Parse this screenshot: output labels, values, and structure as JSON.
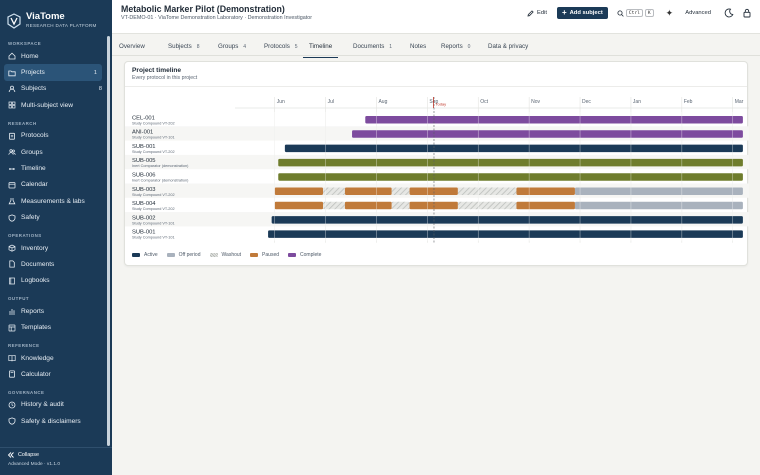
{
  "brand": {
    "name": "ViaTome",
    "tagline": "RESEARCH DATA PLATFORM"
  },
  "sidebar": {
    "sections": [
      {
        "label": "WORKSPACE",
        "items": [
          {
            "label": "Home",
            "icon": "home-icon"
          },
          {
            "label": "Projects",
            "icon": "folder-icon",
            "count": "1",
            "active": true
          },
          {
            "label": "Subjects",
            "icon": "user-icon",
            "count": "8"
          },
          {
            "label": "Multi-subject view",
            "icon": "grid-icon"
          }
        ]
      },
      {
        "label": "RESEARCH",
        "items": [
          {
            "label": "Protocols",
            "icon": "clipboard-icon"
          },
          {
            "label": "Groups",
            "icon": "users-icon"
          },
          {
            "label": "Timeline",
            "icon": "timeline-icon"
          },
          {
            "label": "Calendar",
            "icon": "calendar-icon"
          },
          {
            "label": "Measurements & labs",
            "icon": "flask-icon"
          },
          {
            "label": "Safety",
            "icon": "shield-icon"
          }
        ]
      },
      {
        "label": "OPERATIONS",
        "items": [
          {
            "label": "Inventory",
            "icon": "box-icon"
          },
          {
            "label": "Documents",
            "icon": "document-icon"
          },
          {
            "label": "Logbooks",
            "icon": "book-icon"
          }
        ]
      },
      {
        "label": "OUTPUT",
        "items": [
          {
            "label": "Reports",
            "icon": "chart-icon"
          },
          {
            "label": "Templates",
            "icon": "template-icon"
          }
        ]
      },
      {
        "label": "REFERENCE",
        "items": [
          {
            "label": "Knowledge",
            "icon": "book-open-icon"
          },
          {
            "label": "Calculator",
            "icon": "calculator-icon"
          }
        ]
      },
      {
        "label": "GOVERNANCE",
        "items": [
          {
            "label": "History & audit",
            "icon": "history-icon"
          },
          {
            "label": "Safety & disclaimers",
            "icon": "shield-icon"
          }
        ]
      }
    ],
    "collapse_label": "Collapse",
    "mode_label": "Advanced Mode · v1.1.0"
  },
  "header": {
    "title": "Metabolic Marker Pilot (Demonstration)",
    "subtitle": "VT-DEMO-01 · ViaTome Demonstration Laboratory · Demonstration Investigator",
    "edit_label": "Edit",
    "add_subject_label": "Add subject",
    "kbd_ctrl": "Ctrl",
    "kbd_k": "K",
    "advanced_label": "Advanced"
  },
  "tabs": [
    {
      "label": "Overview",
      "count": ""
    },
    {
      "label": "Subjects",
      "count": "8"
    },
    {
      "label": "Groups",
      "count": "4"
    },
    {
      "label": "Protocols",
      "count": "5"
    },
    {
      "label": "Timeline",
      "count": "",
      "active": true
    },
    {
      "label": "Documents",
      "count": "1"
    },
    {
      "label": "Notes",
      "count": ""
    },
    {
      "label": "Reports",
      "count": "0"
    },
    {
      "label": "Data & privacy",
      "count": ""
    }
  ],
  "card": {
    "title": "Project timeline",
    "subtitle": "Every protocol in this project"
  },
  "timeline": {
    "months": [
      "Jun",
      "Jul",
      "Aug",
      "Sep",
      "Oct",
      "Nov",
      "Dec",
      "Jan",
      "Feb",
      "Mar"
    ],
    "today_label": "Today",
    "today_position_months": 3.13,
    "range_months": [
      -0.78,
      9.32
    ],
    "rows": [
      {
        "subject": "CEL-001",
        "sub": "Study Compound VT-202",
        "segments": [
          {
            "start": 1.78,
            "end": 9.2,
            "status": "complete"
          }
        ]
      },
      {
        "subject": "ANI-001",
        "sub": "Study Compound VT-101",
        "segments": [
          {
            "start": 1.52,
            "end": 9.2,
            "status": "complete"
          }
        ]
      },
      {
        "subject": "SUB-001",
        "sub": "Study Compound VT-202",
        "segments": [
          {
            "start": 0.2,
            "end": 9.2,
            "status": "active"
          }
        ]
      },
      {
        "subject": "SUB-005",
        "sub": "Inert Comparator (demonstration)",
        "segments": [
          {
            "start": 0.07,
            "end": 9.2,
            "status": "paused"
          }
        ]
      },
      {
        "subject": "SUB-006",
        "sub": "Inert Comparator (demonstration)",
        "segments": [
          {
            "start": 0.07,
            "end": 9.2,
            "status": "paused"
          }
        ]
      },
      {
        "subject": "SUB-003",
        "sub": "Study Compound VT-202",
        "segments": [
          {
            "start": 0.0,
            "end": 0.95,
            "status": "washout"
          },
          {
            "start": 0.95,
            "end": 1.38,
            "status": "off"
          },
          {
            "start": 1.38,
            "end": 2.3,
            "status": "washout"
          },
          {
            "start": 2.3,
            "end": 2.65,
            "status": "off"
          },
          {
            "start": 2.65,
            "end": 3.6,
            "status": "washout"
          },
          {
            "start": 3.6,
            "end": 4.75,
            "status": "off"
          },
          {
            "start": 4.75,
            "end": 5.9,
            "status": "washout"
          },
          {
            "start": 5.9,
            "end": 9.2,
            "status": "offperiod"
          }
        ]
      },
      {
        "subject": "SUB-004",
        "sub": "Study Compound VT-202",
        "segments": [
          {
            "start": 0.0,
            "end": 0.95,
            "status": "washout"
          },
          {
            "start": 0.95,
            "end": 1.38,
            "status": "off"
          },
          {
            "start": 1.38,
            "end": 2.3,
            "status": "washout"
          },
          {
            "start": 2.3,
            "end": 2.65,
            "status": "off"
          },
          {
            "start": 2.65,
            "end": 3.6,
            "status": "washout"
          },
          {
            "start": 3.6,
            "end": 4.75,
            "status": "off"
          },
          {
            "start": 4.75,
            "end": 5.9,
            "status": "washout"
          },
          {
            "start": 5.9,
            "end": 9.2,
            "status": "offperiod"
          }
        ]
      },
      {
        "subject": "SUB-002",
        "sub": "Study Compound VT-101",
        "segments": [
          {
            "start": -0.06,
            "end": 9.2,
            "status": "active"
          }
        ]
      },
      {
        "subject": "SUB-001",
        "sub": "Study Compound VT-101",
        "segments": [
          {
            "start": -0.13,
            "end": 9.2,
            "status": "active"
          }
        ]
      }
    ]
  },
  "legend": [
    {
      "label": "Active",
      "status": "active"
    },
    {
      "label": "Off period",
      "status": "offperiod"
    },
    {
      "label": "Washout",
      "status": "off"
    },
    {
      "label": "Paused",
      "status": "washout"
    },
    {
      "label": "Complete",
      "status": "complete"
    }
  ],
  "colors": {
    "active": "#1b3a57",
    "complete": "#7d4b9e",
    "paused": "#6f7d2d",
    "washout": "#c07a3a",
    "offperiod": "#a9b2bd",
    "off": "#d9dbd8"
  }
}
